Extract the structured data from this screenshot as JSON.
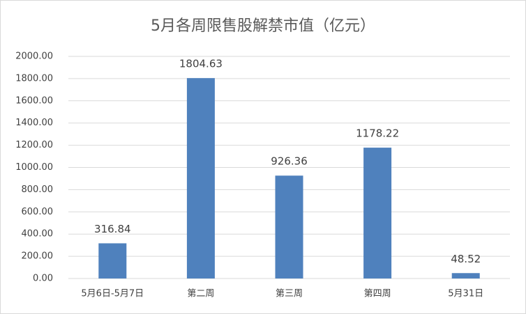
{
  "chart_data": {
    "type": "bar",
    "title": "5月各周限售股解禁市值（亿元）",
    "categories": [
      "5月6日-5月7日",
      "第二周",
      "第三周",
      "第四周",
      "5月31日"
    ],
    "values": [
      316.84,
      1804.63,
      926.36,
      1178.22,
      48.52
    ],
    "color": "#4f81bd",
    "ylim": [
      0,
      2000
    ],
    "yticks": [
      {
        "value": 0,
        "label": "0.00"
      },
      {
        "value": 200,
        "label": "200.00"
      },
      {
        "value": 400,
        "label": "400.00"
      },
      {
        "value": 600,
        "label": "600.00"
      },
      {
        "value": 800,
        "label": "800.00"
      },
      {
        "value": 1000,
        "label": "1000.00"
      },
      {
        "value": 1200,
        "label": "1200.00"
      },
      {
        "value": 1400,
        "label": "1400.00"
      },
      {
        "value": 1600,
        "label": "1600.00"
      },
      {
        "value": 1800,
        "label": "1800.00"
      },
      {
        "value": 2000,
        "label": "2000.00"
      }
    ],
    "grid": true
  }
}
